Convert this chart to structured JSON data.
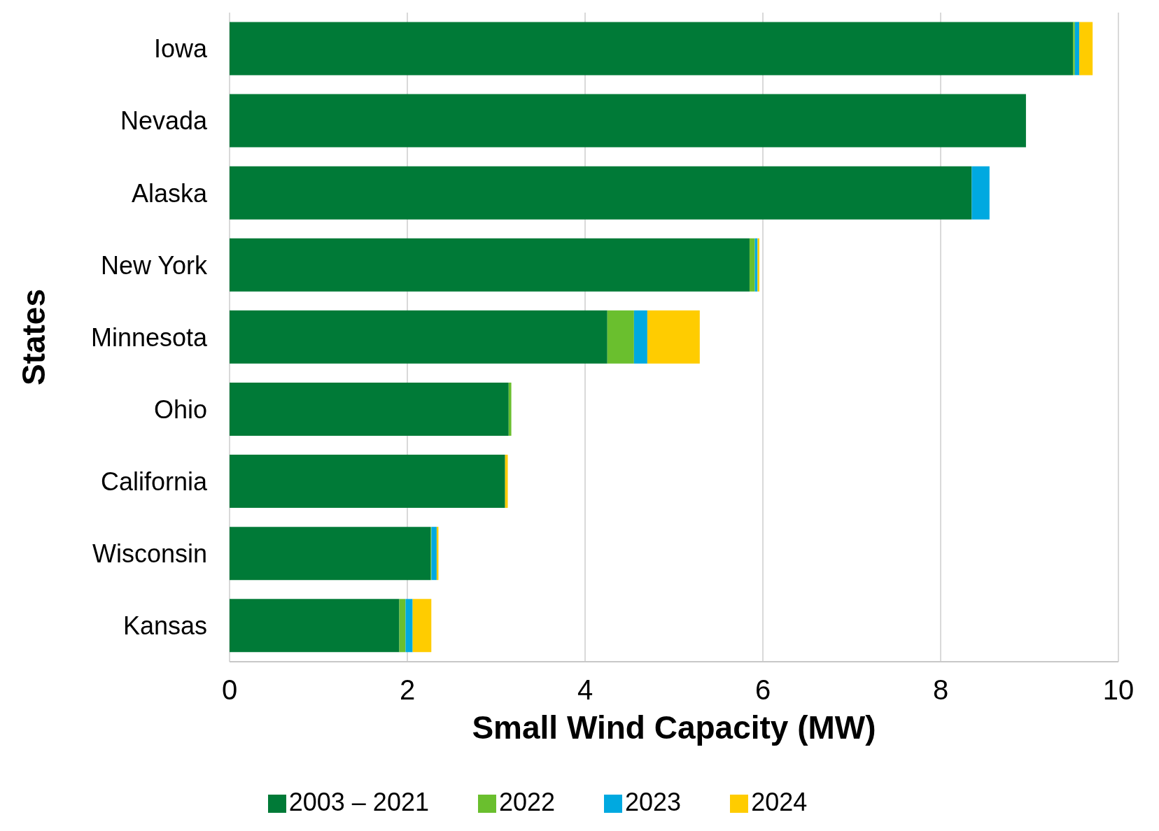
{
  "chart_data": {
    "type": "bar",
    "orientation": "horizontal",
    "stacked": true,
    "xlabel": "Small Wind Capacity (MW)",
    "ylabel": "States",
    "categories": [
      "Iowa",
      "Nevada",
      "Alaska",
      "New York",
      "Minnesota",
      "Ohio",
      "California",
      "Wisconsin",
      "Kansas"
    ],
    "series": [
      {
        "name": "2003 – 2021",
        "color": "#007a37",
        "values": [
          9.49,
          8.96,
          8.35,
          5.85,
          4.25,
          3.14,
          3.1,
          2.26,
          1.91
        ]
      },
      {
        "name": "2022",
        "color": "#6abf2e",
        "values": [
          0.02,
          0,
          0,
          0.06,
          0.3,
          0.03,
          0,
          0.01,
          0.07
        ]
      },
      {
        "name": "2023",
        "color": "#00a9e0",
        "values": [
          0.05,
          0,
          0.2,
          0.03,
          0.15,
          0,
          0,
          0.06,
          0.08
        ]
      },
      {
        "name": "2024",
        "color": "#ffcc00",
        "values": [
          0.15,
          0,
          0,
          0.02,
          0.59,
          0,
          0.03,
          0.02,
          0.21
        ]
      }
    ],
    "xlim": [
      0,
      10
    ],
    "xticks": [
      0,
      2,
      4,
      6,
      8,
      10
    ],
    "grid": "x",
    "legend": "bottom"
  }
}
